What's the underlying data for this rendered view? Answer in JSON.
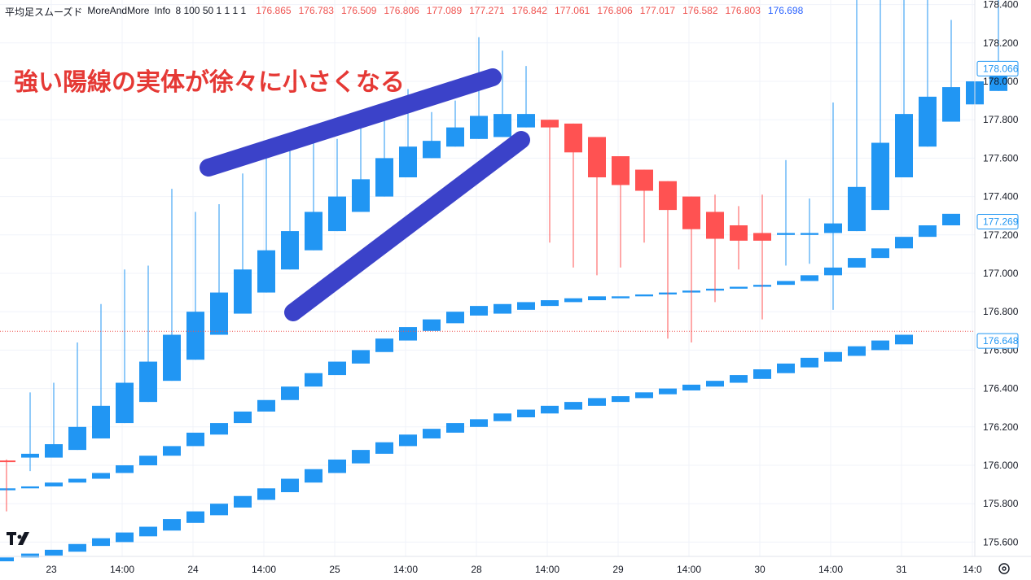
{
  "header": {
    "indicator_name": "平均足スムーズド",
    "author": "MoreAndMore",
    "title": "Info",
    "params": "8 100 50 1 1 1 1",
    "values": [
      {
        "text": "176.865",
        "color": "red"
      },
      {
        "text": "176.783",
        "color": "red"
      },
      {
        "text": "176.509",
        "color": "red"
      },
      {
        "text": "176.806",
        "color": "red"
      },
      {
        "text": "177.089",
        "color": "red"
      },
      {
        "text": "177.271",
        "color": "red"
      },
      {
        "text": "176.842",
        "color": "red"
      },
      {
        "text": "177.061",
        "color": "red"
      },
      {
        "text": "176.806",
        "color": "red"
      },
      {
        "text": "177.017",
        "color": "red"
      },
      {
        "text": "176.582",
        "color": "red"
      },
      {
        "text": "176.803",
        "color": "red"
      },
      {
        "text": "176.698",
        "color": "blue"
      }
    ]
  },
  "annotation": {
    "text": "強い陽線の実体が徐々に小さくなる",
    "color": "#e53935",
    "marker_color": "#3b42c9"
  },
  "colors": {
    "bull": "#2196f3",
    "bear": "#ff5252",
    "grid": "#f0f3fa",
    "label_bg": "#ffffff",
    "label_border": "#2196f3",
    "price_line": "#ef5350"
  },
  "icons": {
    "logo": "tradingview-logo-icon",
    "settings": "gear-icon"
  },
  "chart_data": {
    "type": "candlestick",
    "ylim": [
      175.5,
      178.45
    ],
    "y_ticks": [
      "178.400",
      "178.200",
      "178.000",
      "177.800",
      "177.600",
      "177.400",
      "177.200",
      "177.000",
      "176.800",
      "176.600",
      "176.400",
      "176.200",
      "176.000",
      "175.800",
      "175.600"
    ],
    "x_labels": [
      "23",
      "14:00",
      "24",
      "14:00",
      "25",
      "14:00",
      "28",
      "14:00",
      "29",
      "14:00",
      "30",
      "14:00",
      "31",
      "14:0"
    ],
    "price_labels": [
      {
        "value": 178.066,
        "text": "178.066"
      },
      {
        "value": 177.269,
        "text": "177.269"
      },
      {
        "value": 176.648,
        "text": "176.648"
      }
    ],
    "current_price": 176.698,
    "main_series": [
      {
        "o": 176.025,
        "h": 176.03,
        "l": 175.76,
        "c": 176.025,
        "dir": "down"
      },
      {
        "o": 176.04,
        "h": 176.38,
        "l": 175.97,
        "c": 176.06,
        "dir": "up"
      },
      {
        "o": 176.04,
        "h": 176.43,
        "l": 176.04,
        "c": 176.11,
        "dir": "up"
      },
      {
        "o": 176.08,
        "h": 176.64,
        "l": 176.08,
        "c": 176.2,
        "dir": "up"
      },
      {
        "o": 176.14,
        "h": 176.84,
        "l": 176.14,
        "c": 176.31,
        "dir": "up"
      },
      {
        "o": 176.22,
        "h": 177.02,
        "l": 176.22,
        "c": 176.43,
        "dir": "up"
      },
      {
        "o": 176.33,
        "h": 177.04,
        "l": 176.33,
        "c": 176.54,
        "dir": "up"
      },
      {
        "o": 176.44,
        "h": 177.44,
        "l": 176.44,
        "c": 176.68,
        "dir": "up"
      },
      {
        "o": 176.55,
        "h": 177.32,
        "l": 176.55,
        "c": 176.8,
        "dir": "up"
      },
      {
        "o": 176.68,
        "h": 177.36,
        "l": 176.68,
        "c": 176.9,
        "dir": "up"
      },
      {
        "o": 176.79,
        "h": 177.52,
        "l": 176.79,
        "c": 177.02,
        "dir": "up"
      },
      {
        "o": 176.9,
        "h": 177.6,
        "l": 176.9,
        "c": 177.12,
        "dir": "up"
      },
      {
        "o": 177.02,
        "h": 177.66,
        "l": 177.02,
        "c": 177.22,
        "dir": "up"
      },
      {
        "o": 177.12,
        "h": 177.74,
        "l": 177.12,
        "c": 177.32,
        "dir": "up"
      },
      {
        "o": 177.22,
        "h": 177.7,
        "l": 177.22,
        "c": 177.4,
        "dir": "up"
      },
      {
        "o": 177.32,
        "h": 177.8,
        "l": 177.32,
        "c": 177.49,
        "dir": "up"
      },
      {
        "o": 177.4,
        "h": 177.86,
        "l": 177.4,
        "c": 177.6,
        "dir": "up"
      },
      {
        "o": 177.5,
        "h": 177.96,
        "l": 177.5,
        "c": 177.66,
        "dir": "up"
      },
      {
        "o": 177.6,
        "h": 177.84,
        "l": 177.6,
        "c": 177.69,
        "dir": "up"
      },
      {
        "o": 177.66,
        "h": 177.9,
        "l": 177.66,
        "c": 177.76,
        "dir": "up"
      },
      {
        "o": 177.7,
        "h": 178.23,
        "l": 177.7,
        "c": 177.82,
        "dir": "up"
      },
      {
        "o": 177.71,
        "h": 178.16,
        "l": 177.71,
        "c": 177.83,
        "dir": "up"
      },
      {
        "o": 177.76,
        "h": 178.08,
        "l": 177.76,
        "c": 177.83,
        "dir": "up"
      },
      {
        "o": 177.8,
        "h": 177.8,
        "l": 177.16,
        "c": 177.76,
        "dir": "down"
      },
      {
        "o": 177.78,
        "h": 177.78,
        "l": 177.03,
        "c": 177.63,
        "dir": "down"
      },
      {
        "o": 177.71,
        "h": 177.71,
        "l": 176.99,
        "c": 177.5,
        "dir": "down"
      },
      {
        "o": 177.61,
        "h": 177.61,
        "l": 177.03,
        "c": 177.46,
        "dir": "down"
      },
      {
        "o": 177.54,
        "h": 177.54,
        "l": 177.16,
        "c": 177.43,
        "dir": "down"
      },
      {
        "o": 177.48,
        "h": 177.48,
        "l": 176.66,
        "c": 177.33,
        "dir": "down"
      },
      {
        "o": 177.4,
        "h": 177.4,
        "l": 176.64,
        "c": 177.23,
        "dir": "down"
      },
      {
        "o": 177.32,
        "h": 177.41,
        "l": 176.85,
        "c": 177.18,
        "dir": "down"
      },
      {
        "o": 177.25,
        "h": 177.35,
        "l": 177.02,
        "c": 177.17,
        "dir": "down"
      },
      {
        "o": 177.21,
        "h": 177.41,
        "l": 176.76,
        "c": 177.17,
        "dir": "down"
      },
      {
        "o": 177.2,
        "h": 177.59,
        "l": 177.04,
        "c": 177.21,
        "dir": "up"
      },
      {
        "o": 177.2,
        "h": 177.39,
        "l": 177.05,
        "c": 177.21,
        "dir": "up"
      },
      {
        "o": 177.21,
        "h": 177.89,
        "l": 176.81,
        "c": 177.26,
        "dir": "up"
      },
      {
        "o": 177.22,
        "h": 178.45,
        "l": 177.22,
        "c": 177.45,
        "dir": "up"
      },
      {
        "o": 177.33,
        "h": 178.45,
        "l": 177.33,
        "c": 177.68,
        "dir": "up"
      },
      {
        "o": 177.5,
        "h": 178.45,
        "l": 177.5,
        "c": 177.83,
        "dir": "up"
      },
      {
        "o": 177.66,
        "h": 178.45,
        "l": 177.66,
        "c": 177.92,
        "dir": "up"
      },
      {
        "o": 177.79,
        "h": 178.32,
        "l": 177.79,
        "c": 177.97,
        "dir": "up"
      },
      {
        "o": 177.88,
        "h": 178.23,
        "l": 177.84,
        "c": 178.0,
        "dir": "up"
      },
      {
        "o": 177.95,
        "h": 178.45,
        "l": 177.95,
        "c": 178.07,
        "dir": "up"
      }
    ],
    "mid_band": [
      {
        "o": 175.87,
        "c": 175.88
      },
      {
        "o": 175.88,
        "c": 175.89
      },
      {
        "o": 175.89,
        "c": 175.91
      },
      {
        "o": 175.91,
        "c": 175.93
      },
      {
        "o": 175.93,
        "c": 175.96
      },
      {
        "o": 175.96,
        "c": 176.0
      },
      {
        "o": 176.0,
        "c": 176.05
      },
      {
        "o": 176.05,
        "c": 176.1
      },
      {
        "o": 176.1,
        "c": 176.17
      },
      {
        "o": 176.16,
        "c": 176.22
      },
      {
        "o": 176.22,
        "c": 176.28
      },
      {
        "o": 176.28,
        "c": 176.34
      },
      {
        "o": 176.34,
        "c": 176.41
      },
      {
        "o": 176.41,
        "c": 176.48
      },
      {
        "o": 176.47,
        "c": 176.54
      },
      {
        "o": 176.53,
        "c": 176.6
      },
      {
        "o": 176.59,
        "c": 176.66
      },
      {
        "o": 176.65,
        "c": 176.72
      },
      {
        "o": 176.7,
        "c": 176.76
      },
      {
        "o": 176.74,
        "c": 176.8
      },
      {
        "o": 176.78,
        "c": 176.83
      },
      {
        "o": 176.79,
        "c": 176.84
      },
      {
        "o": 176.81,
        "c": 176.85
      },
      {
        "o": 176.83,
        "c": 176.86
      },
      {
        "o": 176.85,
        "c": 176.87
      },
      {
        "o": 176.86,
        "c": 176.88
      },
      {
        "o": 176.87,
        "c": 176.88
      },
      {
        "o": 176.88,
        "c": 176.89
      },
      {
        "o": 176.89,
        "c": 176.9
      },
      {
        "o": 176.9,
        "c": 176.91
      },
      {
        "o": 176.91,
        "c": 176.92
      },
      {
        "o": 176.92,
        "c": 176.93
      },
      {
        "o": 176.93,
        "c": 176.94
      },
      {
        "o": 176.94,
        "c": 176.96
      },
      {
        "o": 176.96,
        "c": 176.99
      },
      {
        "o": 176.99,
        "c": 177.03
      },
      {
        "o": 177.03,
        "c": 177.08
      },
      {
        "o": 177.08,
        "c": 177.13
      },
      {
        "o": 177.13,
        "c": 177.19
      },
      {
        "o": 177.19,
        "c": 177.25
      },
      {
        "o": 177.25,
        "c": 177.31
      }
    ],
    "low_band": [
      {
        "o": 175.5,
        "c": 175.52
      },
      {
        "o": 175.52,
        "c": 175.54
      },
      {
        "o": 175.53,
        "c": 175.56
      },
      {
        "o": 175.55,
        "c": 175.59
      },
      {
        "o": 175.58,
        "c": 175.62
      },
      {
        "o": 175.6,
        "c": 175.65
      },
      {
        "o": 175.63,
        "c": 175.68
      },
      {
        "o": 175.66,
        "c": 175.72
      },
      {
        "o": 175.7,
        "c": 175.76
      },
      {
        "o": 175.74,
        "c": 175.8
      },
      {
        "o": 175.78,
        "c": 175.84
      },
      {
        "o": 175.82,
        "c": 175.88
      },
      {
        "o": 175.86,
        "c": 175.93
      },
      {
        "o": 175.91,
        "c": 175.98
      },
      {
        "o": 175.96,
        "c": 176.03
      },
      {
        "o": 176.01,
        "c": 176.08
      },
      {
        "o": 176.06,
        "c": 176.12
      },
      {
        "o": 176.1,
        "c": 176.16
      },
      {
        "o": 176.14,
        "c": 176.19
      },
      {
        "o": 176.17,
        "c": 176.22
      },
      {
        "o": 176.2,
        "c": 176.24
      },
      {
        "o": 176.23,
        "c": 176.27
      },
      {
        "o": 176.25,
        "c": 176.29
      },
      {
        "o": 176.27,
        "c": 176.31
      },
      {
        "o": 176.29,
        "c": 176.33
      },
      {
        "o": 176.31,
        "c": 176.35
      },
      {
        "o": 176.33,
        "c": 176.36
      },
      {
        "o": 176.35,
        "c": 176.38
      },
      {
        "o": 176.37,
        "c": 176.4
      },
      {
        "o": 176.39,
        "c": 176.42
      },
      {
        "o": 176.41,
        "c": 176.44
      },
      {
        "o": 176.43,
        "c": 176.47
      },
      {
        "o": 176.45,
        "c": 176.5
      },
      {
        "o": 176.48,
        "c": 176.53
      },
      {
        "o": 176.51,
        "c": 176.56
      },
      {
        "o": 176.54,
        "c": 176.59
      },
      {
        "o": 176.57,
        "c": 176.62
      },
      {
        "o": 176.6,
        "c": 176.65
      },
      {
        "o": 176.63,
        "c": 176.68
      }
    ]
  }
}
